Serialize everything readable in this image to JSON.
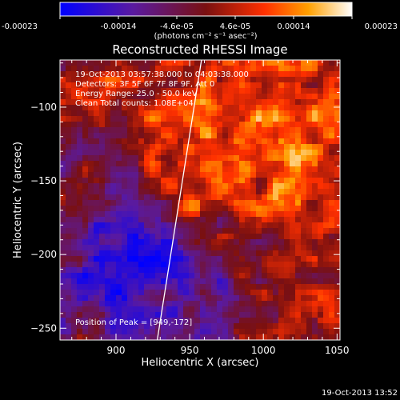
{
  "chart_data": {
    "type": "heatmap",
    "title": "Reconstructed RHESSI Image",
    "xlabel": "Heliocentric X (arcsec)",
    "ylabel": "Heliocentric Y (arcsec)",
    "xlim": [
      862,
      1052
    ],
    "ylim": [
      -258,
      -68
    ],
    "xticks": [
      900,
      950,
      1000,
      1050
    ],
    "yticks": [
      -100,
      -150,
      -200,
      -250
    ],
    "colorbar": {
      "min": -0.00023,
      "max": 0.00023,
      "tick_labels": [
        "-0.00023",
        "-0.00014",
        "-4.6e-05",
        "4.6e-05",
        "0.00014",
        "0.00023"
      ],
      "unit_label": "(photons cm⁻² s⁻¹ asec⁻²)"
    },
    "annotations": [
      "19-Oct-2013 03:57:38.000 to 04:03:38.000",
      "Detectors: 3F 5F 6F 7F 8F 9F, Att 0",
      "Energy Range: 25.0 - 50.0 keV",
      "Clean     Total counts: 1.08E+04"
    ],
    "peak_label": "Position of Peak = [949,-172]",
    "peak": [
      949,
      -172
    ],
    "limb_line": [
      [
        928,
        -258
      ],
      [
        958,
        -68
      ]
    ],
    "timestamp": "19-Oct-2013 13:52"
  }
}
